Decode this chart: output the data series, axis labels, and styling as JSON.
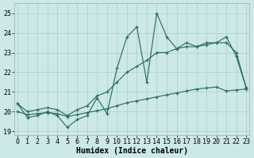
{
  "xlabel": "Humidex (Indice chaleur)",
  "x": [
    0,
    1,
    2,
    3,
    4,
    5,
    6,
    7,
    8,
    9,
    10,
    11,
    12,
    13,
    14,
    15,
    16,
    17,
    18,
    19,
    20,
    21,
    22,
    23
  ],
  "line1": [
    20.4,
    19.7,
    19.8,
    20.0,
    19.8,
    19.2,
    19.6,
    19.8,
    20.7,
    19.9,
    22.2,
    23.8,
    24.3,
    21.5,
    25.0,
    23.8,
    23.2,
    23.5,
    23.3,
    23.5,
    23.5,
    23.8,
    22.8,
    21.2
  ],
  "line2": [
    20.4,
    20.0,
    20.1,
    20.2,
    20.1,
    19.8,
    20.1,
    20.3,
    20.8,
    21.0,
    21.5,
    22.0,
    22.3,
    22.6,
    23.0,
    23.0,
    23.2,
    23.3,
    23.3,
    23.4,
    23.5,
    23.5,
    23.0,
    21.2
  ],
  "line3": [
    20.0,
    19.85,
    19.9,
    19.95,
    19.9,
    19.75,
    19.85,
    19.95,
    20.05,
    20.15,
    20.3,
    20.45,
    20.55,
    20.65,
    20.75,
    20.85,
    20.95,
    21.05,
    21.15,
    21.2,
    21.25,
    21.05,
    21.1,
    21.15
  ],
  "line_color": "#2d6e63",
  "bg_color": "#cce8e8",
  "grid_color": "#aacfcf",
  "ylim": [
    18.8,
    25.5
  ],
  "yticks": [
    19,
    20,
    21,
    22,
    23,
    24,
    25
  ],
  "xticks": [
    0,
    1,
    2,
    3,
    4,
    5,
    6,
    7,
    8,
    9,
    10,
    11,
    12,
    13,
    14,
    15,
    16,
    17,
    18,
    19,
    20,
    21,
    22,
    23
  ],
  "xlabel_fontsize": 7,
  "tick_fontsize": 6
}
